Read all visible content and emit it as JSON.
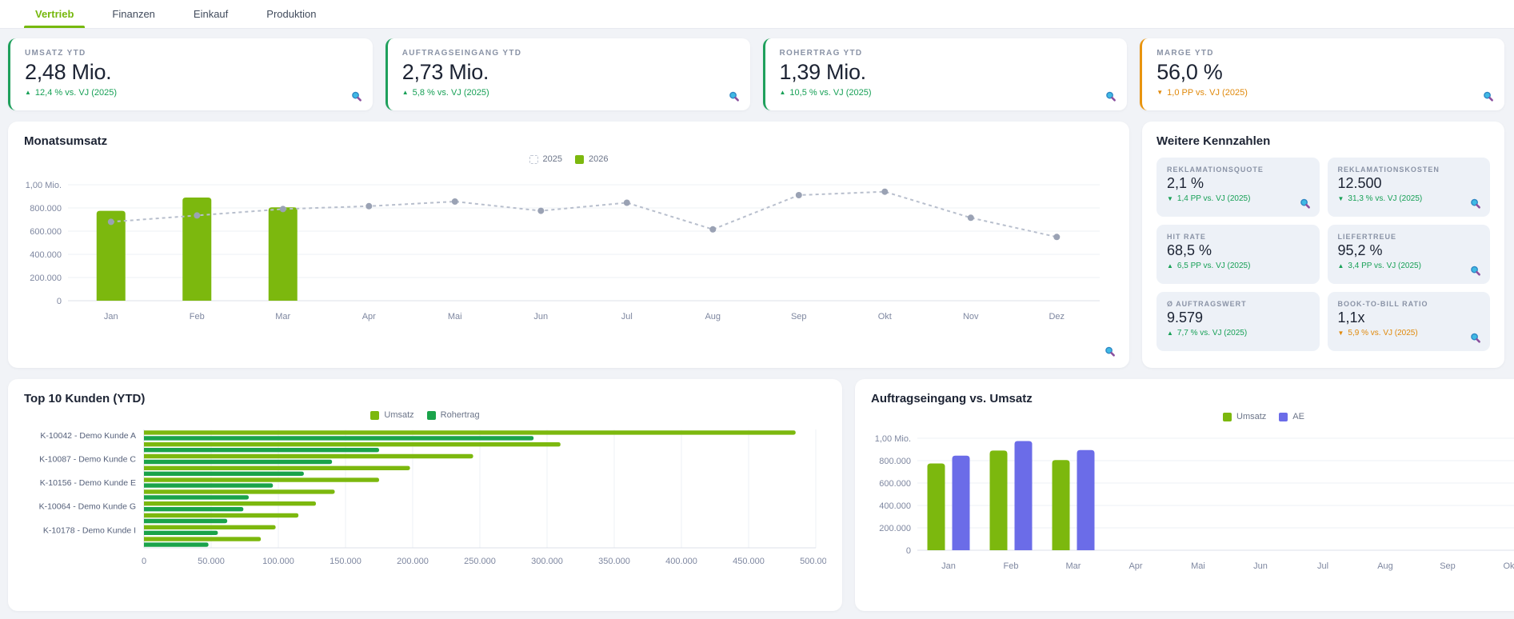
{
  "tabs": [
    {
      "label": "Vertrieb",
      "active": true
    },
    {
      "label": "Finanzen",
      "active": false
    },
    {
      "label": "Einkauf",
      "active": false
    },
    {
      "label": "Produktion",
      "active": false
    }
  ],
  "kpi_cards": [
    {
      "label": "UMSATZ YTD",
      "value": "2,48 Mio.",
      "arrow": "up",
      "trend": "positive",
      "delta": "12,4 % vs. VJ (2025)",
      "magnifier": true
    },
    {
      "label": "AUFTRAGSEINGANG YTD",
      "value": "2,73 Mio.",
      "arrow": "up",
      "trend": "positive",
      "delta": "5,8 % vs. VJ (2025)",
      "magnifier": true
    },
    {
      "label": "ROHERTRAG YTD",
      "value": "1,39 Mio.",
      "arrow": "up",
      "trend": "positive",
      "delta": "10,5 % vs. VJ (2025)",
      "magnifier": true
    },
    {
      "label": "MARGE YTD",
      "value": "56,0 %",
      "arrow": "down",
      "trend": "negative",
      "delta": "1,0 PP vs. VJ (2025)",
      "magnifier": true
    }
  ],
  "kennzahlen": {
    "title": "Weitere Kennzahlen",
    "cards": [
      {
        "label": "REKLAMATIONSQUOTE",
        "value": "2,1 %",
        "arrow": "down",
        "trend": "positive",
        "delta": "1,4 PP vs. VJ (2025)",
        "magnifier": true
      },
      {
        "label": "REKLAMATIONSKOSTEN",
        "value": "12.500",
        "arrow": "down",
        "trend": "positive",
        "delta": "31,3 % vs. VJ (2025)",
        "magnifier": true
      },
      {
        "label": "HIT RATE",
        "value": "68,5 %",
        "arrow": "up",
        "trend": "positive",
        "delta": "6,5 PP vs. VJ (2025)",
        "magnifier": false
      },
      {
        "label": "LIEFERTREUE",
        "value": "95,2 %",
        "arrow": "up",
        "trend": "positive",
        "delta": "3,4 PP vs. VJ (2025)",
        "magnifier": true
      },
      {
        "label": "Ø AUFTRAGSWERT",
        "value": "9.579",
        "arrow": "up",
        "trend": "positive",
        "delta": "7,7 % vs. VJ (2025)",
        "magnifier": false
      },
      {
        "label": "BOOK-TO-BILL RATIO",
        "value": "1,1x",
        "arrow": "down",
        "trend": "negative",
        "delta": "5,9 % vs. VJ (2025)",
        "magnifier": true
      }
    ]
  },
  "chart_data": [
    {
      "name": "monatsumsatz",
      "type": "bar",
      "title": "Monatsumsatz",
      "categories": [
        "Jan",
        "Feb",
        "Mar",
        "Apr",
        "Mai",
        "Jun",
        "Jul",
        "Aug",
        "Sep",
        "Okt",
        "Nov",
        "Dez"
      ],
      "series": [
        {
          "name": "2025",
          "type": "line",
          "style": "dashed",
          "color": "#b8bfcd",
          "dot_color": "#9aa2b4",
          "values": [
            680000,
            735000,
            790000,
            815000,
            855000,
            775000,
            845000,
            615000,
            910000,
            940000,
            715000,
            550000
          ]
        },
        {
          "name": "2026",
          "type": "bar",
          "color": "#7cb80e",
          "values": [
            775000,
            890000,
            805000,
            null,
            null,
            null,
            null,
            null,
            null,
            null,
            null,
            null
          ]
        }
      ],
      "ylim": [
        0,
        1000000
      ],
      "yticks": [
        {
          "value": 1000000,
          "label": "1,00 Mio."
        },
        {
          "value": 800000,
          "label": "800.000"
        },
        {
          "value": 600000,
          "label": "600.000"
        },
        {
          "value": 400000,
          "label": "400.000"
        },
        {
          "value": 200000,
          "label": "200.000"
        },
        {
          "value": 0,
          "label": "0"
        }
      ],
      "legend_position": "top",
      "grid": true,
      "magnifier": true
    },
    {
      "name": "top10_kunden",
      "type": "bar_horizontal",
      "title": "Top 10 Kunden (YTD)",
      "categories": [
        "K-10042 - Demo Kunde A",
        "",
        "K-10087 - Demo Kunde C",
        "",
        "K-10156 - Demo Kunde E",
        "",
        "K-10064 - Demo Kunde G",
        "",
        "K-10178 - Demo Kunde I",
        ""
      ],
      "series": [
        {
          "name": "Umsatz",
          "type": "bar",
          "color": "#7cb80e",
          "values": [
            485000,
            310000,
            245000,
            198000,
            175000,
            142000,
            128000,
            115000,
            98000,
            87000
          ]
        },
        {
          "name": "Rohertrag",
          "type": "bar",
          "color": "#1aa34a",
          "values": [
            290000,
            175000,
            140000,
            119000,
            96000,
            78000,
            74000,
            62000,
            55000,
            48000
          ]
        }
      ],
      "xlim": [
        0,
        500000
      ],
      "xticks": [
        {
          "value": 0,
          "label": "0"
        },
        {
          "value": 50000,
          "label": "50.000"
        },
        {
          "value": 100000,
          "label": "100.000"
        },
        {
          "value": 150000,
          "label": "150.000"
        },
        {
          "value": 200000,
          "label": "200.000"
        },
        {
          "value": 250000,
          "label": "250.000"
        },
        {
          "value": 300000,
          "label": "300.000"
        },
        {
          "value": 350000,
          "label": "350.000"
        },
        {
          "value": 400000,
          "label": "400.000"
        },
        {
          "value": 450000,
          "label": "450.000"
        },
        {
          "value": 500000,
          "label": "500.000"
        }
      ],
      "legend_position": "top",
      "grid": true
    },
    {
      "name": "auftragseingang_vs_umsatz",
      "type": "bar",
      "title": "Auftragseingang vs. Umsatz",
      "categories": [
        "Jan",
        "Feb",
        "Mar",
        "Apr",
        "Mai",
        "Jun",
        "Jul",
        "Aug",
        "Sep",
        "Okt"
      ],
      "series": [
        {
          "name": "Umsatz",
          "type": "bar",
          "color": "#7cb80e",
          "values": [
            775000,
            890000,
            805000,
            null,
            null,
            null,
            null,
            null,
            null,
            null
          ]
        },
        {
          "name": "AE",
          "type": "bar",
          "color": "#6b6ce8",
          "values": [
            845000,
            975000,
            895000,
            null,
            null,
            null,
            null,
            null,
            null,
            null
          ]
        }
      ],
      "ylim": [
        0,
        1000000
      ],
      "yticks": [
        {
          "value": 1000000,
          "label": "1,00 Mio."
        },
        {
          "value": 800000,
          "label": "800.000"
        },
        {
          "value": 600000,
          "label": "600.000"
        },
        {
          "value": 400000,
          "label": "400.000"
        },
        {
          "value": 200000,
          "label": "200.000"
        },
        {
          "value": 0,
          "label": "0"
        }
      ],
      "legend_position": "top",
      "grid": true
    }
  ],
  "colors": {
    "accent_green": "#76b80d",
    "bar_green": "#7cb80e",
    "rohertrag_green": "#1aa34a",
    "delta_green": "#17a056",
    "delta_orange": "#e0890b",
    "ae_purple": "#6b6ce8",
    "line_gray": "#b8bfcd",
    "page_bg": "#f1f3f7",
    "minicard_bg": "#edf1f7"
  }
}
